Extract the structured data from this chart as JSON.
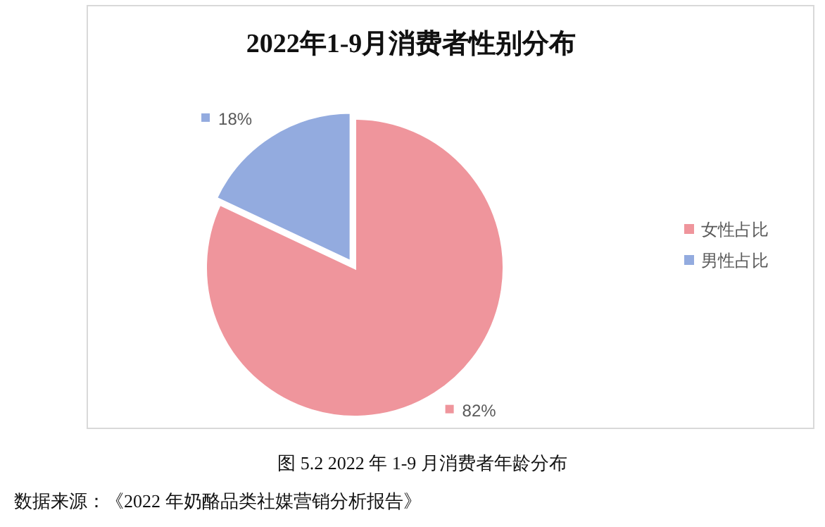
{
  "chart_data": {
    "type": "pie",
    "title": "2022年1-9月消费者性别分布",
    "categories": [
      "女性占比",
      "男性占比"
    ],
    "values": [
      82,
      18
    ],
    "colors": [
      "#ef959c",
      "#93abdf"
    ],
    "value_labels": [
      "82%",
      "18%"
    ],
    "legend": "right",
    "annotations": [
      "图 5.2 2022 年 1-9 月消费者年龄分布",
      "数据来源：《2022 年奶酪品类社媒营销分析报告》"
    ]
  }
}
